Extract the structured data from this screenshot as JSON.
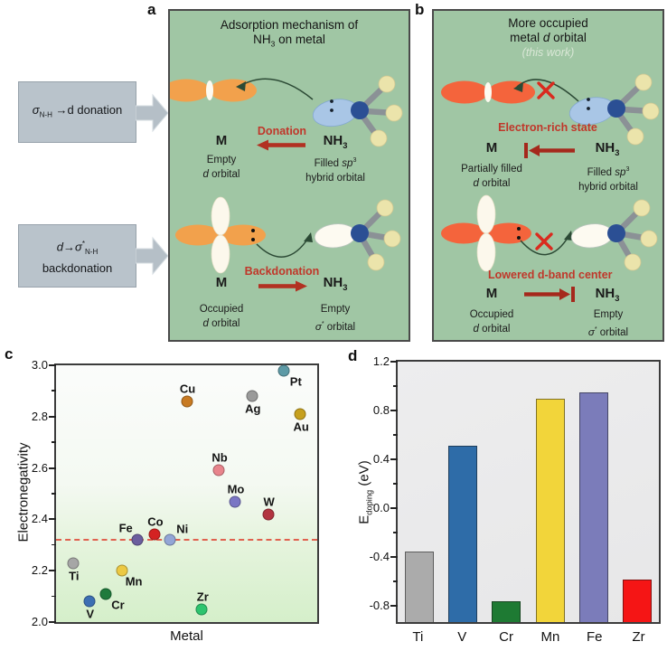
{
  "colors": {
    "panel_green": "#a0c6a4",
    "flowbox_gray": "#b9c3cb",
    "red_label": "#c0372a",
    "red_arrow": "#b23122",
    "blocked_arrow_red": "#a5281c",
    "cross_red": "#da2a1e",
    "orbital_orange": "#f2a14c",
    "orbital_red_orange": "#f4643c",
    "nh3_lobe_blue": "#a9c6e6",
    "nitrogen_blue": "#2b4f94",
    "hydrogen_cream": "#ebe4ab",
    "dashed_threshold": "#e0614f",
    "plot_d_bg": "#eaeaea"
  },
  "left_flow": {
    "box1": {
      "sigma": "σ",
      "sub": "N-H",
      "rest": " →d donation"
    },
    "box2": {
      "pre": "d→σ",
      "sup": "*",
      "sub": "N-H",
      "line2": "backdonation"
    }
  },
  "panel_a": {
    "label": "a",
    "title1": "Adsorption mechanism of",
    "title2_pre": "NH",
    "title2_sub": "3",
    "title2_post": " on metal",
    "donation_label": "Donation",
    "m": "M",
    "nh3_pre": "NH",
    "nh3_sub": "3",
    "m_top_line1": "Empty",
    "orb_d": "d",
    "orb_word": " orbital",
    "n_top_pre": "Filled ",
    "n_top_it": "sp",
    "n_top_sup": "3",
    "n_top_line2": "hybrid orbital",
    "backdonation_label": "Backdonation",
    "m_bot_line1": "Occupied",
    "n_bot_line1": "Empty",
    "sigma": "σ",
    "star": "*",
    "orbital_word": " orbital"
  },
  "panel_b": {
    "label": "b",
    "title1": "More occupied",
    "title2_pre": "metal ",
    "title2_it": "d",
    "title2_post": " orbital",
    "subtitle": "(this work)",
    "electron_rich_label": "Electron-rich state",
    "m": "M",
    "nh3_pre": "NH",
    "nh3_sub": "3",
    "m_top_line1": "Partially filled",
    "orb_d": "d",
    "orb_word": " orbital",
    "n_top_pre": "Filled ",
    "n_top_it": "sp",
    "n_top_sup": "3",
    "n_top_line2": "hybrid orbital",
    "lowered_label": "Lowered d-band center",
    "m_bot_line1": "Occupied",
    "n_bot_line1": "Empty",
    "sigma": "σ",
    "star": "*",
    "orbital_word": " orbital"
  },
  "panel_c": {
    "label": "c"
  },
  "panel_d": {
    "label": "d",
    "ylabel_main": "E",
    "ylabel_sub": "doping",
    "ylabel_unit": " (eV)"
  },
  "chart_data": [
    {
      "id": "panel_c",
      "type": "scatter",
      "xlabel": "Metal",
      "ylabel": "Electronegativity",
      "ylim": [
        2.0,
        3.0
      ],
      "yticks": [
        "2.0",
        "2.2",
        "2.4",
        "2.6",
        "2.8",
        "3.0"
      ],
      "yticks_minor": [
        2.1,
        2.3,
        2.5,
        2.7,
        2.9
      ],
      "grid": false,
      "threshold_line": {
        "y": 2.32,
        "style": "dashed",
        "color": "#e0614f"
      },
      "points": [
        {
          "name": "Ti",
          "x": 0.065,
          "y": 2.23,
          "color": "#a6a6a6",
          "label_pos": "below"
        },
        {
          "name": "V",
          "x": 0.127,
          "y": 2.08,
          "color": "#3c6fb3",
          "label_pos": "below"
        },
        {
          "name": "Cr",
          "x": 0.192,
          "y": 2.11,
          "color": "#1f7a3c",
          "label_pos": "below-right"
        },
        {
          "name": "Mn",
          "x": 0.253,
          "y": 2.2,
          "color": "#ecc943",
          "label_pos": "below-right"
        },
        {
          "name": "Fe",
          "x": 0.312,
          "y": 2.32,
          "color": "#6b5e9e",
          "label_pos": "above-left"
        },
        {
          "name": "Co",
          "x": 0.377,
          "y": 2.34,
          "color": "#d42222",
          "label_pos": "above"
        },
        {
          "name": "Ni",
          "x": 0.435,
          "y": 2.32,
          "color": "#93a6d6",
          "label_pos": "above-right"
        },
        {
          "name": "Cu",
          "x": 0.5,
          "y": 2.86,
          "color": "#c87a22",
          "label_pos": "above"
        },
        {
          "name": "Zr",
          "x": 0.558,
          "y": 2.05,
          "color": "#2dc46e",
          "label_pos": "above"
        },
        {
          "name": "Nb",
          "x": 0.623,
          "y": 2.59,
          "color": "#e8848c",
          "label_pos": "above"
        },
        {
          "name": "Mo",
          "x": 0.685,
          "y": 2.47,
          "color": "#7a76c4",
          "label_pos": "above"
        },
        {
          "name": "Ag",
          "x": 0.75,
          "y": 2.88,
          "color": "#9a9a9a",
          "label_pos": "below"
        },
        {
          "name": "W",
          "x": 0.812,
          "y": 2.42,
          "color": "#b23440",
          "label_pos": "above"
        },
        {
          "name": "Pt",
          "x": 0.873,
          "y": 2.98,
          "color": "#5d9aa6",
          "label_pos": "below-right"
        },
        {
          "name": "Au",
          "x": 0.935,
          "y": 2.81,
          "color": "#c6a01e",
          "label_pos": "below"
        }
      ]
    },
    {
      "id": "panel_d",
      "type": "bar",
      "ylabel": "E_doping (eV)",
      "ylim": [
        -0.93,
        1.2
      ],
      "yticks": [
        "-0.8",
        "-0.4",
        "0.0",
        "0.4",
        "0.8",
        "1.2"
      ],
      "yticks_minor": [
        -0.6,
        -0.2,
        0.2,
        0.6,
        1.0
      ],
      "categories": [
        "Ti",
        "V",
        "Cr",
        "Mn",
        "Fe",
        "Zr"
      ],
      "values": [
        -0.35,
        0.51,
        -0.76,
        0.9,
        0.95,
        -0.58
      ],
      "colors": [
        "#ababab",
        "#2e6ca8",
        "#1e7a33",
        "#f2d53a",
        "#7b7cba",
        "#f51515"
      ],
      "bar_base": "plot_bottom"
    }
  ]
}
